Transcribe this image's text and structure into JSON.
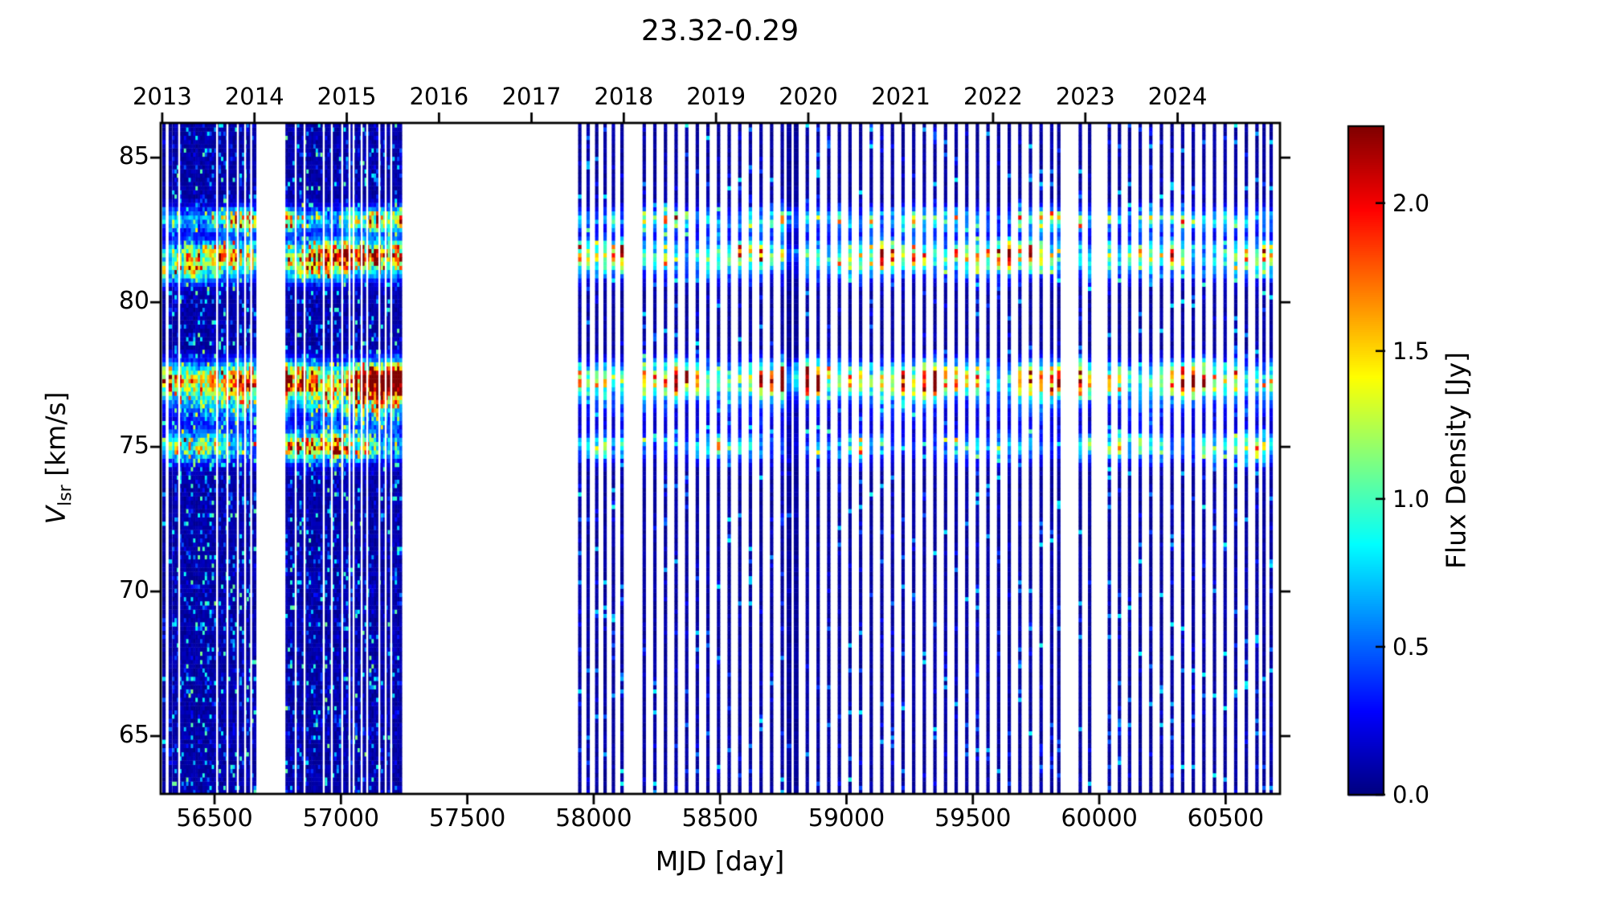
{
  "title": "23.32-0.29",
  "axes": {
    "xlabel": "MJD [day]",
    "ylabel_main": "V",
    "ylabel_sub": "lsr",
    "ylabel_unit": " [km/s]",
    "x_ticks": [
      56500,
      57000,
      57500,
      58000,
      58500,
      59000,
      59500,
      60000,
      60500
    ],
    "y_ticks": [
      85,
      80,
      75,
      70,
      65
    ],
    "year_ticks": [
      {
        "label": "2013",
        "mjd": 56293
      },
      {
        "label": "2014",
        "mjd": 56658
      },
      {
        "label": "2015",
        "mjd": 57023
      },
      {
        "label": "2016",
        "mjd": 57388
      },
      {
        "label": "2017",
        "mjd": 57754
      },
      {
        "label": "2018",
        "mjd": 58119
      },
      {
        "label": "2019",
        "mjd": 58484
      },
      {
        "label": "2020",
        "mjd": 58849
      },
      {
        "label": "2021",
        "mjd": 59215
      },
      {
        "label": "2022",
        "mjd": 59580
      },
      {
        "label": "2023",
        "mjd": 59945
      },
      {
        "label": "2024",
        "mjd": 60310
      }
    ]
  },
  "colorbar": {
    "label": "Flux Density [Jy]",
    "ticks": [
      "0.0",
      "0.5",
      "1.0",
      "1.5",
      "2.0"
    ],
    "tick_values": [
      0.0,
      0.5,
      1.0,
      1.5,
      2.0
    ],
    "vmin": 0.0,
    "vmax": 2.26,
    "colormap": "jet"
  },
  "chart_data": {
    "type": "heatmap",
    "title": "23.32-0.29",
    "xlabel": "MJD [day]",
    "ylabel": "V_lsr [km/s]",
    "zlabel": "Flux Density [Jy]",
    "x_range": [
      56287,
      60715
    ],
    "y_range": [
      63.0,
      86.2
    ],
    "z_range": [
      0.0,
      2.26
    ],
    "colormap": "jet",
    "grid": false,
    "description": "Dynamic spectrum of maser source 23.32-0.29: flux density vs time (MJD 56287-60715, years 2013-2024) and LSR velocity (63-86 km/s). Dense daily monitoring blocks in 2013-2015, observing gap 2015.6-2017.7, then regular single-epoch vertical stripes 2017.7-2024.9. Persistent emission bands near 82.8, 81.6, 77.3 and 75.0 km/s.",
    "dense_blocks": [
      {
        "start": 56338,
        "end": 56660
      },
      {
        "start": 56786,
        "end": 57244
      }
    ],
    "block_gap_mjds": [
      56360,
      56510,
      56551,
      56592,
      56621,
      56645,
      56821,
      56856,
      56932,
      56964,
      57005,
      57034,
      57050,
      57082,
      57104,
      57152,
      57177,
      57199
    ],
    "stripe_mjds": [
      56300,
      56325,
      57945,
      57978,
      58012,
      58045,
      58078,
      58112,
      58200,
      58242,
      58284,
      58326,
      58368,
      58410,
      58452,
      58494,
      58536,
      58578,
      58620,
      58662,
      58704,
      58746,
      58845,
      58888,
      58930,
      58972,
      59014,
      59056,
      59098,
      59140,
      59182,
      59224,
      59266,
      59308,
      59350,
      59392,
      59434,
      59476,
      59518,
      59560,
      59602,
      59644,
      59686,
      59728,
      59770,
      59812,
      59840,
      59925,
      59962,
      60040,
      60080,
      60120,
      60162,
      60204,
      60246,
      60288,
      60330,
      60372,
      60414,
      60456,
      60498,
      60540,
      60582,
      60624,
      60652,
      60680
    ],
    "dark_stripe_mjds": [
      58773,
      58801
    ],
    "bands": [
      {
        "name": "82.8 km/s feature",
        "v_center": 82.85,
        "v_width": 0.28,
        "amp_eras": [
          [
            56287,
            57244,
            1.25
          ],
          [
            57900,
            60720,
            1.0
          ]
        ]
      },
      {
        "name": "81.6 km/s feature",
        "v_center": 81.65,
        "v_width": 0.33,
        "amp_eras": [
          [
            56287,
            56660,
            1.15
          ],
          [
            56786,
            57244,
            1.95
          ],
          [
            57900,
            59100,
            1.25
          ],
          [
            59100,
            59800,
            1.55
          ],
          [
            59800,
            60720,
            1.35
          ]
        ]
      },
      {
        "name": "81.0 km/s shoulder",
        "v_center": 81.05,
        "v_width": 0.28,
        "amp_eras": [
          [
            56287,
            57244,
            0.7
          ],
          [
            57900,
            60720,
            0.35
          ]
        ]
      },
      {
        "name": "77.3 km/s feature",
        "v_center": 77.35,
        "v_width": 0.38,
        "amp_eras": [
          [
            56287,
            56660,
            1.55
          ],
          [
            56786,
            57244,
            1.85
          ],
          [
            57900,
            60720,
            1.7
          ]
        ]
      },
      {
        "name": "76.8 km/s broad shoulder",
        "v_center": 76.7,
        "v_width": 0.6,
        "amp_eras": [
          [
            56287,
            56660,
            0.8
          ],
          [
            56786,
            57244,
            1.05
          ],
          [
            57900,
            60720,
            0.35
          ]
        ]
      },
      {
        "name": "75.0 km/s feature",
        "v_center": 75.0,
        "v_width": 0.33,
        "amp_eras": [
          [
            56287,
            56660,
            0.9
          ],
          [
            56786,
            57244,
            1.45
          ],
          [
            57900,
            59900,
            0.7
          ],
          [
            59900,
            60720,
            1.0
          ]
        ]
      }
    ],
    "noise": {
      "block_base_jy": 0.3,
      "block_speckle_prob": 0.22,
      "block_speckle_max_jy": 1.05,
      "stripe_base_jy": 0.24,
      "stripe_speckle_prob": 0.15,
      "stripe_speckle_max_jy": 0.8
    }
  }
}
